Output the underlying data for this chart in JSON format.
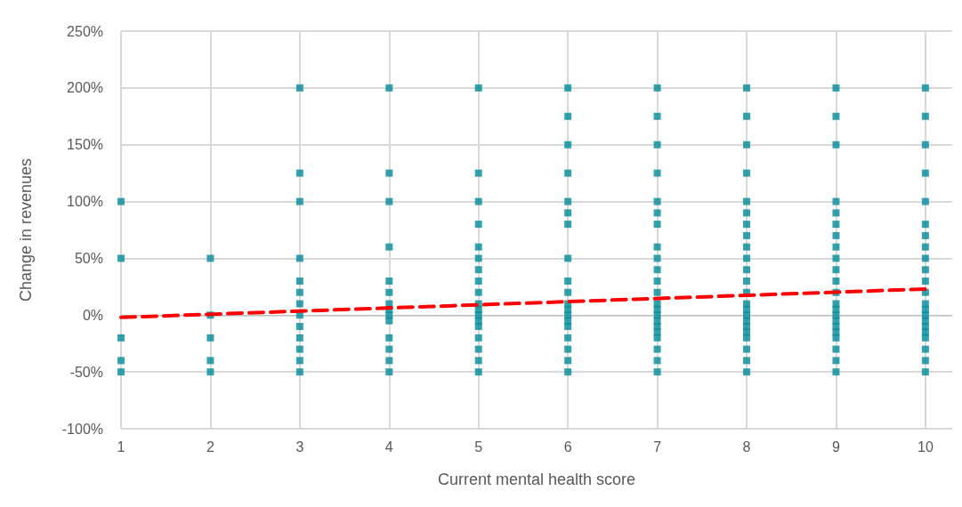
{
  "chart_data": {
    "type": "scatter",
    "xlabel": "Current mental health score",
    "ylabel": "Change in revenues",
    "xlim": [
      1,
      10.3
    ],
    "xticks": [
      1,
      2,
      3,
      4,
      5,
      6,
      7,
      8,
      9,
      10
    ],
    "ylim": [
      -100,
      250
    ],
    "yticks": [
      {
        "value": -100,
        "label": "-100%"
      },
      {
        "value": -50,
        "label": "-50%"
      },
      {
        "value": 0,
        "label": "0%"
      },
      {
        "value": 50,
        "label": "50%"
      },
      {
        "value": 100,
        "label": "100%"
      },
      {
        "value": 150,
        "label": "150%"
      },
      {
        "value": 200,
        "label": "200%"
      },
      {
        "value": 250,
        "label": "250%"
      }
    ],
    "grid": true,
    "marker": "square",
    "series": [
      {
        "color": "#008b99",
        "x": [
          1,
          1,
          1,
          1,
          1,
          2,
          2,
          2,
          2,
          2,
          3,
          3,
          3,
          3,
          3,
          3,
          3,
          3,
          3,
          3,
          3,
          3,
          3,
          4,
          4,
          4,
          4,
          4,
          4,
          4,
          4,
          4,
          4,
          4,
          4,
          4,
          4,
          5,
          5,
          5,
          5,
          5,
          5,
          5,
          5,
          5,
          5,
          5,
          5,
          5,
          5,
          5,
          5,
          5,
          5,
          6,
          6,
          6,
          6,
          6,
          6,
          6,
          6,
          6,
          6,
          6,
          6,
          6,
          6,
          6,
          6,
          6,
          6,
          6,
          7,
          7,
          7,
          7,
          7,
          7,
          7,
          7,
          7,
          7,
          7,
          7,
          7,
          7,
          7,
          7,
          7,
          7,
          7,
          7,
          7,
          7,
          8,
          8,
          8,
          8,
          8,
          8,
          8,
          8,
          8,
          8,
          8,
          8,
          8,
          8,
          8,
          8,
          8,
          8,
          8,
          8,
          8,
          8,
          8,
          9,
          9,
          9,
          9,
          9,
          9,
          9,
          9,
          9,
          9,
          9,
          9,
          9,
          9,
          9,
          9,
          9,
          9,
          9,
          9,
          9,
          9,
          10,
          10,
          10,
          10,
          10,
          10,
          10,
          10,
          10,
          10,
          10,
          10,
          10,
          10,
          10,
          10,
          10,
          10,
          10,
          10,
          10,
          10
        ],
        "values": [
          100,
          50,
          -20,
          -40,
          -50,
          50,
          0,
          -20,
          -40,
          -50,
          200,
          125,
          100,
          50,
          30,
          20,
          10,
          0,
          -10,
          -20,
          -30,
          -40,
          -50,
          200,
          125,
          100,
          60,
          30,
          20,
          10,
          5,
          0,
          -5,
          -20,
          -30,
          -40,
          -50,
          200,
          125,
          100,
          80,
          60,
          50,
          40,
          30,
          20,
          10,
          5,
          0,
          -5,
          -10,
          -20,
          -30,
          -40,
          -50,
          200,
          175,
          150,
          125,
          100,
          90,
          80,
          50,
          30,
          20,
          10,
          5,
          0,
          -5,
          -10,
          -20,
          -30,
          -40,
          -50,
          200,
          175,
          150,
          125,
          100,
          90,
          80,
          60,
          50,
          40,
          30,
          20,
          10,
          5,
          0,
          -5,
          -10,
          -15,
          -20,
          -30,
          -40,
          -50,
          200,
          175,
          150,
          125,
          100,
          90,
          80,
          70,
          60,
          50,
          40,
          30,
          20,
          10,
          5,
          0,
          -5,
          -10,
          -15,
          -20,
          -30,
          -40,
          -50,
          200,
          175,
          150,
          100,
          90,
          80,
          70,
          60,
          50,
          40,
          30,
          20,
          10,
          5,
          0,
          -5,
          -10,
          -15,
          -20,
          -30,
          -40,
          -50,
          200,
          175,
          150,
          125,
          100,
          80,
          70,
          60,
          50,
          40,
          30,
          20,
          10,
          5,
          0,
          -5,
          -10,
          -15,
          -20,
          -30,
          -40,
          -50
        ]
      },
      {
        "type": "line",
        "color": "#ff0000",
        "line_style": "dashed",
        "marker": "none",
        "x": [
          1,
          10
        ],
        "values": [
          -2,
          23
        ]
      }
    ]
  }
}
